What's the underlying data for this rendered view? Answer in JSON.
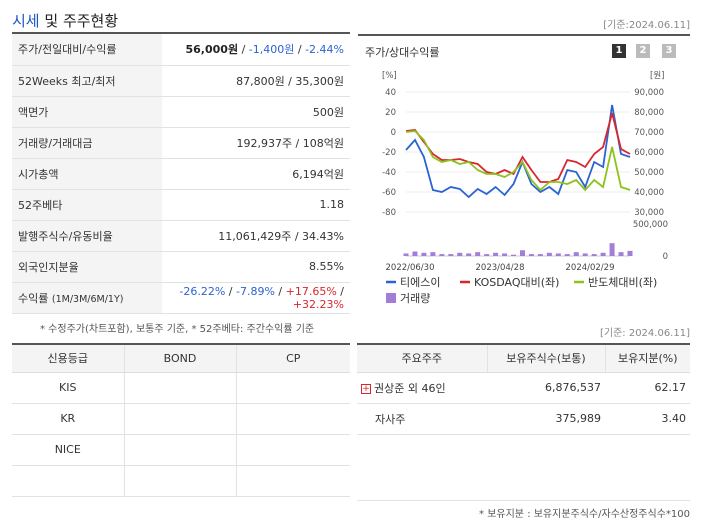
{
  "header": {
    "title_blue": "시세",
    "title_rest": "및 주주현황",
    "date": "[기준:2024.06.11]"
  },
  "info": {
    "rows": [
      {
        "label": "주가/전일대비/수익률"
      },
      {
        "label": "52Weeks 최고/최저",
        "value": "87,800원 / 35,300원"
      },
      {
        "label": "액면가",
        "value": "500원"
      },
      {
        "label": "거래량/거래대금",
        "value": "192,937주 / 108억원"
      },
      {
        "label": "시가총액",
        "value": "6,194억원"
      },
      {
        "label": "52주베타",
        "value": "1.18"
      },
      {
        "label": "발행주식수/유동비율",
        "value": "11,061,429주 / 34.43%"
      },
      {
        "label": "외국인지분율",
        "value": "8.55%"
      },
      {
        "label": "수익률",
        "label_small": "(1M/3M/6M/1Y)"
      }
    ],
    "price": "56,000원",
    "sep": " / ",
    "change": "-1,400원",
    "rate": "-2.44%",
    "returns": [
      "-26.22%",
      "-7.89%",
      "+17.65%",
      "+32.23%"
    ]
  },
  "note1": "* 수정주가(차트포함), 보통주 기준, * 52주베타: 주간수익률 기준",
  "chart_panel": {
    "title": "주가/상대수익률",
    "tabs": [
      "1",
      "2",
      "3"
    ],
    "left_unit": "[%]",
    "right_unit": "[원]"
  },
  "chart_data": {
    "type": "line",
    "x_labels": [
      "2022/06/30",
      "2023/04/28",
      "2024/02/29"
    ],
    "left_axis": {
      "ticks": [
        "40",
        "20",
        "0",
        "-20",
        "-40",
        "-60",
        "-80"
      ],
      "ylim": [
        -80,
        40
      ]
    },
    "right_axis": {
      "ticks": [
        "90,000",
        "80,000",
        "70,000",
        "60,000",
        "50,000",
        "40,000",
        "30,000"
      ],
      "ylim": [
        30000,
        90000
      ]
    },
    "volume_axis": {
      "ticks": [
        "500,000",
        "0"
      ],
      "ylim": [
        0,
        500000
      ]
    },
    "series": [
      {
        "name": "티에스이",
        "color": "#2a63d3",
        "values": [
          -18,
          -8,
          -25,
          -58,
          -60,
          -55,
          -57,
          -65,
          -57,
          -62,
          -55,
          -63,
          -52,
          -30,
          -52,
          -60,
          -55,
          -62,
          -38,
          -40,
          -55,
          -30,
          -35,
          27,
          -22,
          -25
        ]
      },
      {
        "name": "KOSDAQ대비(좌)",
        "color": "#d8262f",
        "values": [
          1,
          2,
          -10,
          -22,
          -28,
          -28,
          -27,
          -30,
          -32,
          -40,
          -42,
          -38,
          -42,
          -25,
          -38,
          -50,
          -50,
          -47,
          -28,
          -30,
          -35,
          -22,
          -15,
          19,
          -17,
          -22
        ]
      },
      {
        "name": "반도체대비(좌)",
        "color": "#8dc21f",
        "values": [
          0,
          1,
          -8,
          -25,
          -30,
          -28,
          -32,
          -30,
          -38,
          -42,
          -42,
          -45,
          -40,
          -30,
          -48,
          -58,
          -50,
          -50,
          -52,
          -48,
          -58,
          -48,
          -55,
          -15,
          -55,
          -58
        ]
      }
    ],
    "volume": {
      "name": "거래량",
      "color": "#a37ed8",
      "values": [
        40000,
        70000,
        50000,
        60000,
        30000,
        30000,
        50000,
        40000,
        60000,
        30000,
        50000,
        40000,
        20000,
        90000,
        30000,
        30000,
        50000,
        40000,
        30000,
        60000,
        40000,
        30000,
        50000,
        200000,
        60000,
        80000
      ]
    }
  },
  "legend": [
    "티에스이",
    "KOSDAQ대비(좌)",
    "반도체대비(좌)",
    "거래량"
  ],
  "date2": "[기준: 2024.06.11]",
  "credit": {
    "headers": [
      "신용등급",
      "BOND",
      "CP"
    ],
    "rows": [
      [
        "KIS",
        "",
        ""
      ],
      [
        "KR",
        "",
        ""
      ],
      [
        "NICE",
        "",
        ""
      ],
      [
        "",
        "",
        ""
      ]
    ]
  },
  "holders": {
    "headers": [
      "주요주주",
      "보유주식수(보통)",
      "보유지분(%)"
    ],
    "rows": [
      {
        "name": "권상준 외 46인",
        "shares": "6,876,537",
        "pct": "62.17"
      },
      {
        "name": "자사주",
        "shares": "375,989",
        "pct": "3.40"
      }
    ]
  },
  "note2": "* 보유지분 : 보유지분주식수/자수산정주식수*100"
}
